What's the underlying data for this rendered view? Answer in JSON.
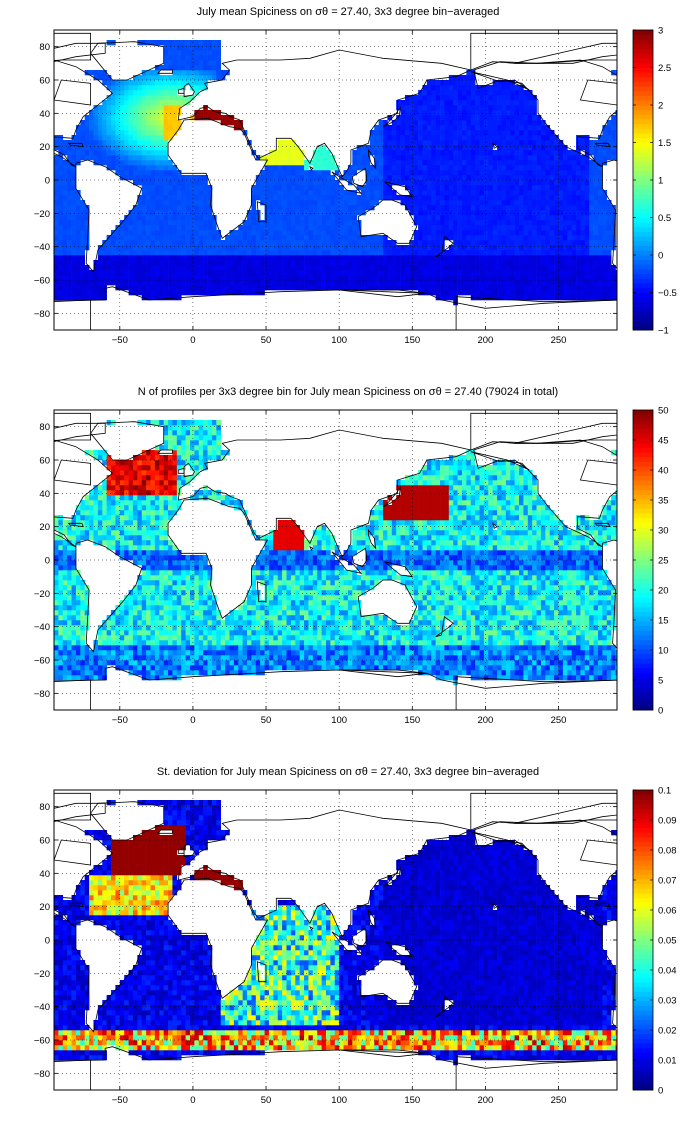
{
  "chart_data": [
    {
      "type": "heatmap",
      "title": "July mean Spiciness on σθ = 27.40, 3x3 degree bin−averaged",
      "x_ticks": [
        "−50",
        "0",
        "50",
        "100",
        "150",
        "200",
        "250"
      ],
      "y_ticks": [
        "80",
        "60",
        "40",
        "20",
        "0",
        "−20",
        "−40",
        "−60",
        "−80"
      ],
      "xlim": [
        -95,
        290
      ],
      "ylim": [
        -90,
        90
      ],
      "colorbar": {
        "min": -1,
        "max": 3,
        "ticks": [
          "3",
          "2.5",
          "2",
          "1.5",
          "1",
          "0.5",
          "0",
          "−0.5",
          "−1"
        ]
      },
      "colormap": "jet",
      "grid": true
    },
    {
      "type": "heatmap",
      "title": "N of profiles per 3x3 degree bin for July mean Spiciness on σθ = 27.40 (79024 in total)",
      "x_ticks": [
        "−50",
        "0",
        "50",
        "100",
        "150",
        "200",
        "250"
      ],
      "y_ticks": [
        "80",
        "60",
        "40",
        "20",
        "0",
        "−20",
        "−40",
        "−60",
        "−80"
      ],
      "xlim": [
        -95,
        290
      ],
      "ylim": [
        -90,
        90
      ],
      "colorbar": {
        "min": 0,
        "max": 50,
        "ticks": [
          "50",
          "45",
          "40",
          "35",
          "30",
          "25",
          "20",
          "15",
          "10",
          "5",
          "0"
        ]
      },
      "colormap": "jet",
      "grid": true
    },
    {
      "type": "heatmap",
      "title": "St. deviation for July mean Spiciness on σθ = 27.40, 3x3 degree bin−averaged",
      "x_ticks": [
        "−50",
        "0",
        "50",
        "100",
        "150",
        "200",
        "250"
      ],
      "y_ticks": [
        "80",
        "60",
        "40",
        "20",
        "0",
        "−20",
        "−40",
        "−60",
        "−80"
      ],
      "xlim": [
        -95,
        290
      ],
      "ylim": [
        -90,
        90
      ],
      "colorbar": {
        "min": 0,
        "max": 0.1,
        "ticks": [
          "0.1",
          "0.09",
          "0.08",
          "0.07",
          "0.06",
          "0.05",
          "0.04",
          "0.03",
          "0.02",
          "0.01",
          "0"
        ]
      },
      "colormap": "jet",
      "grid": true
    }
  ]
}
